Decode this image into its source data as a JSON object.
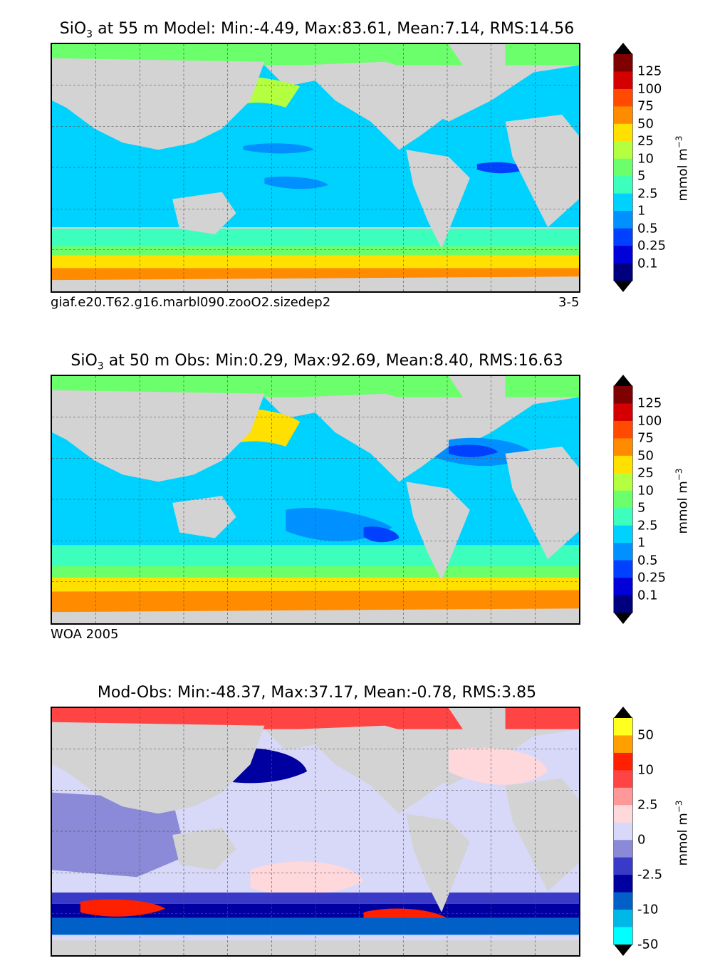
{
  "panels": [
    {
      "title_species": "SiO",
      "title_sub": "3",
      "title_rest": " at 55 m Model: Min:-4.49, Max:83.61, Mean:7.14, RMS:14.56",
      "footnote_left": "giaf.e20.T62.g16.marbl090.zooO2.sizedep2",
      "footnote_right": "3-5",
      "colorbar_labels": [
        "125",
        "100",
        "75",
        "50",
        "25",
        "10",
        "5",
        "2.5",
        "1",
        "0.5",
        "0.25",
        "0.1"
      ],
      "colorbar_unit": "mmol m",
      "colorbar_unit_sup": "−3"
    },
    {
      "title_species": "SiO",
      "title_sub": "3",
      "title_rest": " at 50 m Obs: Min:0.29, Max:92.69, Mean:8.40, RMS:16.63",
      "footnote_left": "WOA 2005",
      "footnote_right": "",
      "colorbar_labels": [
        "125",
        "100",
        "75",
        "50",
        "25",
        "10",
        "5",
        "2.5",
        "1",
        "0.5",
        "0.25",
        "0.1"
      ],
      "colorbar_unit": "mmol m",
      "colorbar_unit_sup": "−3"
    },
    {
      "title_species": "",
      "title_sub": "",
      "title_rest": "Mod-Obs: Min:-48.37, Max:37.17, Mean:-0.78, RMS:3.85",
      "footnote_left": "",
      "footnote_right": "",
      "colorbar_labels": [
        "50",
        "10",
        "2.5",
        "0",
        "-2.5",
        "-10",
        "-50"
      ],
      "colorbar_unit": "mmol m",
      "colorbar_unit_sup": "−3"
    }
  ],
  "colors": {
    "land": "#d3d3d3",
    "abs_scale": [
      "#7f0000",
      "#d40000",
      "#ff4a00",
      "#ff8c00",
      "#ffe000",
      "#b4ff40",
      "#6bff6b",
      "#3dffbd",
      "#00d2ff",
      "#0090ff",
      "#0040ff",
      "#0000d8",
      "#00007f"
    ],
    "diff_scale": [
      "#ffff20",
      "#ffa000",
      "#ff2000",
      "#ff4444",
      "#ff9898",
      "#ffd8dc",
      "#d8d8f8",
      "#8a8ad8",
      "#3a3ac8",
      "#0000a0",
      "#0060c8",
      "#00b8e8",
      "#00ffff"
    ]
  }
}
